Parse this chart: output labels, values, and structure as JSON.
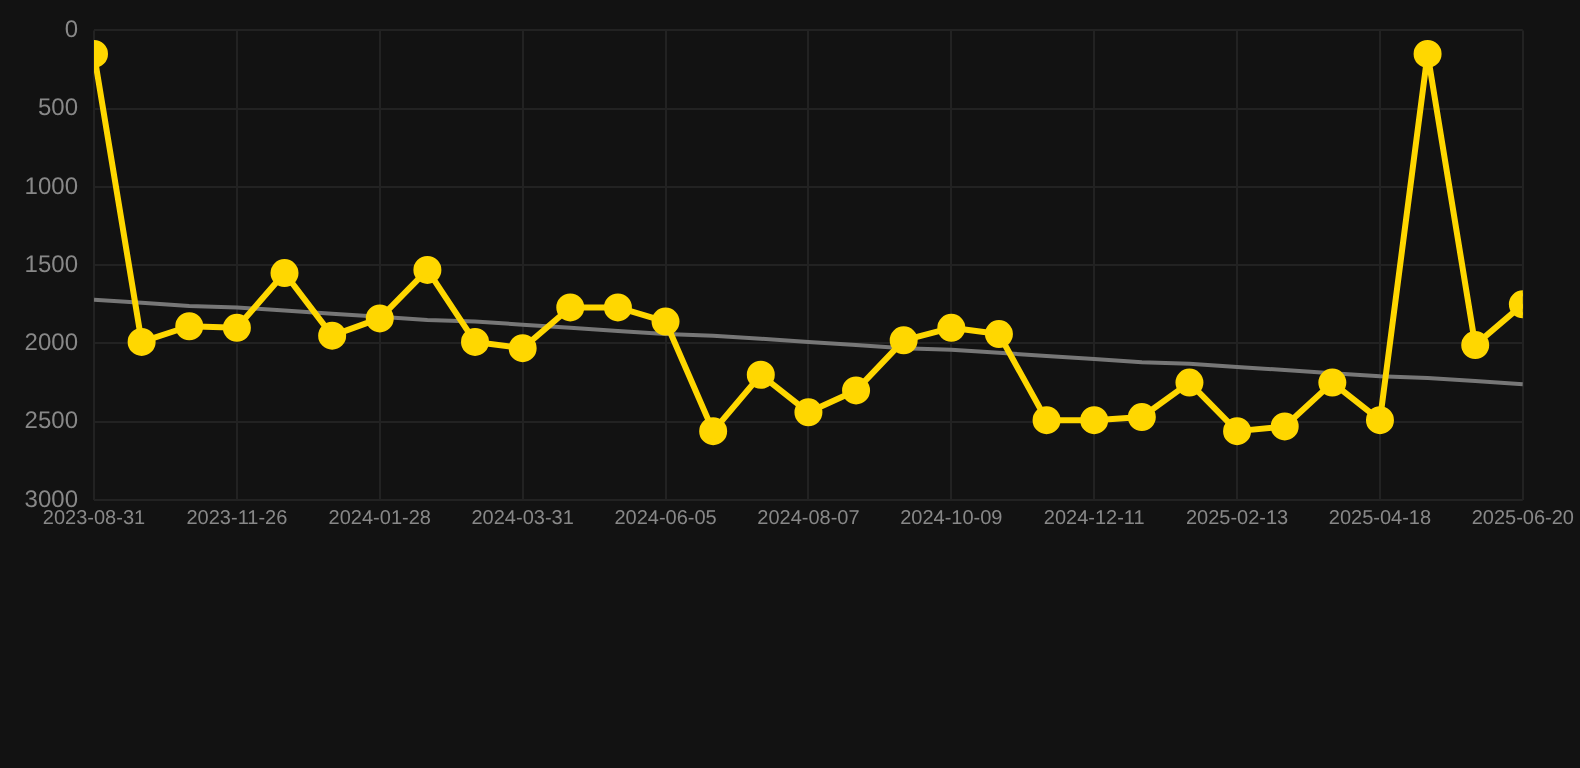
{
  "chart_data": {
    "type": "line",
    "categories": [
      "2023-08-31",
      null,
      null,
      "2023-11-26",
      null,
      null,
      "2024-01-28",
      null,
      null,
      "2024-03-31",
      null,
      null,
      "2024-06-05",
      null,
      null,
      "2024-08-07",
      null,
      null,
      "2024-10-09",
      null,
      null,
      "2024-12-11",
      null,
      null,
      "2025-02-13",
      null,
      null,
      "2025-04-18",
      null,
      null,
      "2025-06-20"
    ],
    "series": [
      {
        "color": "#ffd700",
        "marker": "circle",
        "values": [
          150,
          1990,
          1890,
          1900,
          1550,
          1950,
          1840,
          1530,
          1990,
          2030,
          1770,
          1770,
          1860,
          2560,
          2200,
          2440,
          2300,
          1980,
          1900,
          1940,
          2490,
          2490,
          2470,
          2250,
          2560,
          2530,
          2250,
          2490,
          150,
          2010,
          1750
        ]
      },
      {
        "type": "line",
        "color": "#777777",
        "marker": "none",
        "values": [
          1720,
          1740,
          1760,
          1770,
          1790,
          1810,
          1830,
          1850,
          1860,
          1880,
          1900,
          1920,
          1940,
          1950,
          1970,
          1990,
          2010,
          2030,
          2040,
          2060,
          2080,
          2100,
          2120,
          2130,
          2150,
          2170,
          2190,
          2210,
          2220,
          2240,
          2260
        ]
      }
    ],
    "ylim": [
      3000,
      0
    ],
    "yticks": [
      0,
      500,
      1000,
      1500,
      2000,
      2500,
      3000
    ],
    "grid": true
  }
}
